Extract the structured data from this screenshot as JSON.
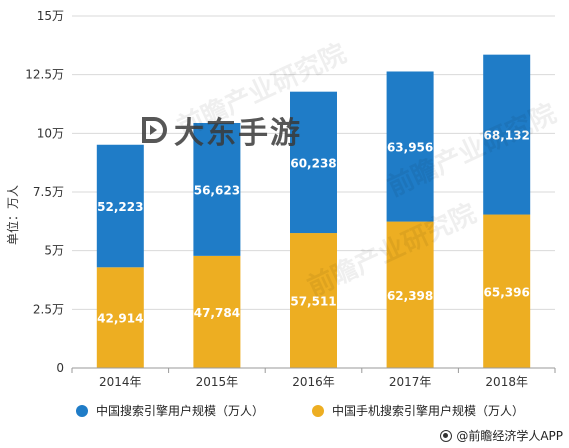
{
  "chart_data": {
    "type": "bar",
    "stacked": true,
    "categories": [
      "2014年",
      "2015年",
      "2016年",
      "2017年",
      "2018年"
    ],
    "series": [
      {
        "name": "中国手机搜索引擎用户规模（万人）",
        "color": "#EDAE22",
        "values": [
          42914,
          47784,
          57511,
          62398,
          65396
        ],
        "labels": [
          "42,914",
          "47,784",
          "57,511",
          "62,398",
          "65,396"
        ]
      },
      {
        "name": "中国搜索引擎用户规模（万人）",
        "color": "#1F7CC7",
        "values": [
          52223,
          56623,
          60238,
          63956,
          68132
        ],
        "labels": [
          "52,223",
          "56,623",
          "60,238",
          "63,956",
          "68,132"
        ]
      }
    ],
    "ylabel": "单位：万人",
    "ylim": [
      0,
      150000
    ],
    "yticks": [
      0,
      25000,
      50000,
      75000,
      100000,
      125000,
      150000
    ],
    "ytick_labels": [
      "0",
      "2.5万",
      "5万",
      "7.5万",
      "10万",
      "12.5万",
      "15万"
    ],
    "grid": true,
    "legend_position": "bottom"
  },
  "legend": {
    "total_label": "中国搜索引擎用户规模（万人）",
    "mobile_label": "中国手机搜索引擎用户规模（万人）"
  },
  "watermark": {
    "text": "大东手游"
  },
  "source": {
    "text": "@前瞻经济学人APP"
  }
}
